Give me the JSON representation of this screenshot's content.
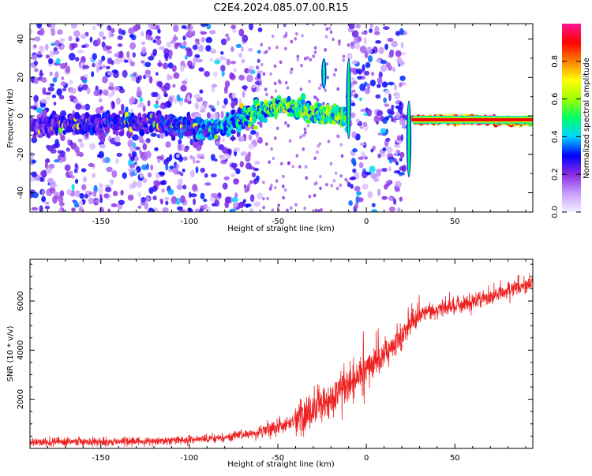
{
  "title": "C2E4.2024.085.07.00.R15",
  "chart_data": [
    {
      "type": "heatmap",
      "title": "",
      "xlabel": "Height of straight line (km)",
      "ylabel": "Frequency (Hz)",
      "xlim": [
        -190,
        94
      ],
      "ylim": [
        -50,
        48
      ],
      "xticks": [
        -150,
        -100,
        -50,
        0,
        50
      ],
      "yticks": [
        -40,
        -20,
        0,
        20,
        40
      ],
      "colorbar": {
        "label": "Normalized spectral amplitude",
        "range": [
          0,
          1
        ],
        "ticks": [
          "0.0",
          "0.2",
          "0.4",
          "0.6",
          "0.8"
        ],
        "colors": [
          "#f5f0ff",
          "#c79cff",
          "#8a2be2",
          "#0000ff",
          "#00d5ff",
          "#00ff66",
          "#9dff00",
          "#ffff00",
          "#ff8000",
          "#ff0000",
          "#ff1493"
        ]
      },
      "noise_bands": [
        {
          "x_start": -190,
          "x_end": -60,
          "level": 0.25
        },
        {
          "x_start": -10,
          "x_end": 22,
          "level": 0.28
        }
      ],
      "ridge": [
        {
          "x": -190,
          "freq": -5,
          "amp": 0.25
        },
        {
          "x": -150,
          "freq": -4,
          "amp": 0.3
        },
        {
          "x": -120,
          "freq": -3,
          "amp": 0.3
        },
        {
          "x": -100,
          "freq": -6,
          "amp": 0.35
        },
        {
          "x": -90,
          "freq": -7,
          "amp": 0.38
        },
        {
          "x": -80,
          "freq": -4,
          "amp": 0.4
        },
        {
          "x": -70,
          "freq": -1,
          "amp": 0.45
        },
        {
          "x": -60,
          "freq": 2,
          "amp": 0.5
        },
        {
          "x": -50,
          "freq": 5,
          "amp": 0.55
        },
        {
          "x": -40,
          "freq": 5,
          "amp": 0.55
        },
        {
          "x": -30,
          "freq": 2,
          "amp": 0.55
        },
        {
          "x": -20,
          "freq": 0,
          "amp": 0.55
        },
        {
          "x": -12,
          "freq": -1,
          "amp": 0.6
        },
        {
          "x": 26,
          "freq": -2,
          "amp": 0.95
        },
        {
          "x": 50,
          "freq": -2,
          "amp": 1.0
        },
        {
          "x": 70,
          "freq": -2,
          "amp": 1.0
        },
        {
          "x": 85,
          "freq": -3,
          "amp": 0.9
        },
        {
          "x": 94,
          "freq": -3,
          "amp": 0.8
        }
      ],
      "spikes": [
        {
          "x": -10,
          "freq_min": -12,
          "freq_max": 30
        },
        {
          "x": 24,
          "freq_min": -32,
          "freq_max": 8
        },
        {
          "x": -24,
          "freq_min": 14,
          "freq_max": 30
        }
      ]
    },
    {
      "type": "line",
      "title": "",
      "xlabel": "Height of straight line (km)",
      "ylabel": "SNR (10 * v/v)",
      "xlim": [
        -190,
        94
      ],
      "ylim": [
        0,
        7700
      ],
      "xticks": [
        -150,
        -100,
        -50,
        0,
        50
      ],
      "yticks": [
        2000,
        4000,
        6000
      ],
      "color": "#ee2222",
      "trend": [
        {
          "x": -190,
          "y": 250
        },
        {
          "x": -150,
          "y": 280
        },
        {
          "x": -120,
          "y": 300
        },
        {
          "x": -100,
          "y": 350
        },
        {
          "x": -80,
          "y": 450
        },
        {
          "x": -60,
          "y": 650
        },
        {
          "x": -45,
          "y": 1000
        },
        {
          "x": -30,
          "y": 1500
        },
        {
          "x": -20,
          "y": 2000
        },
        {
          "x": -10,
          "y": 2600
        },
        {
          "x": 0,
          "y": 3200
        },
        {
          "x": 10,
          "y": 3800
        },
        {
          "x": 20,
          "y": 4700
        },
        {
          "x": 30,
          "y": 5500
        },
        {
          "x": 50,
          "y": 5800
        },
        {
          "x": 70,
          "y": 6200
        },
        {
          "x": 85,
          "y": 6600
        },
        {
          "x": 94,
          "y": 6800
        }
      ]
    }
  ]
}
